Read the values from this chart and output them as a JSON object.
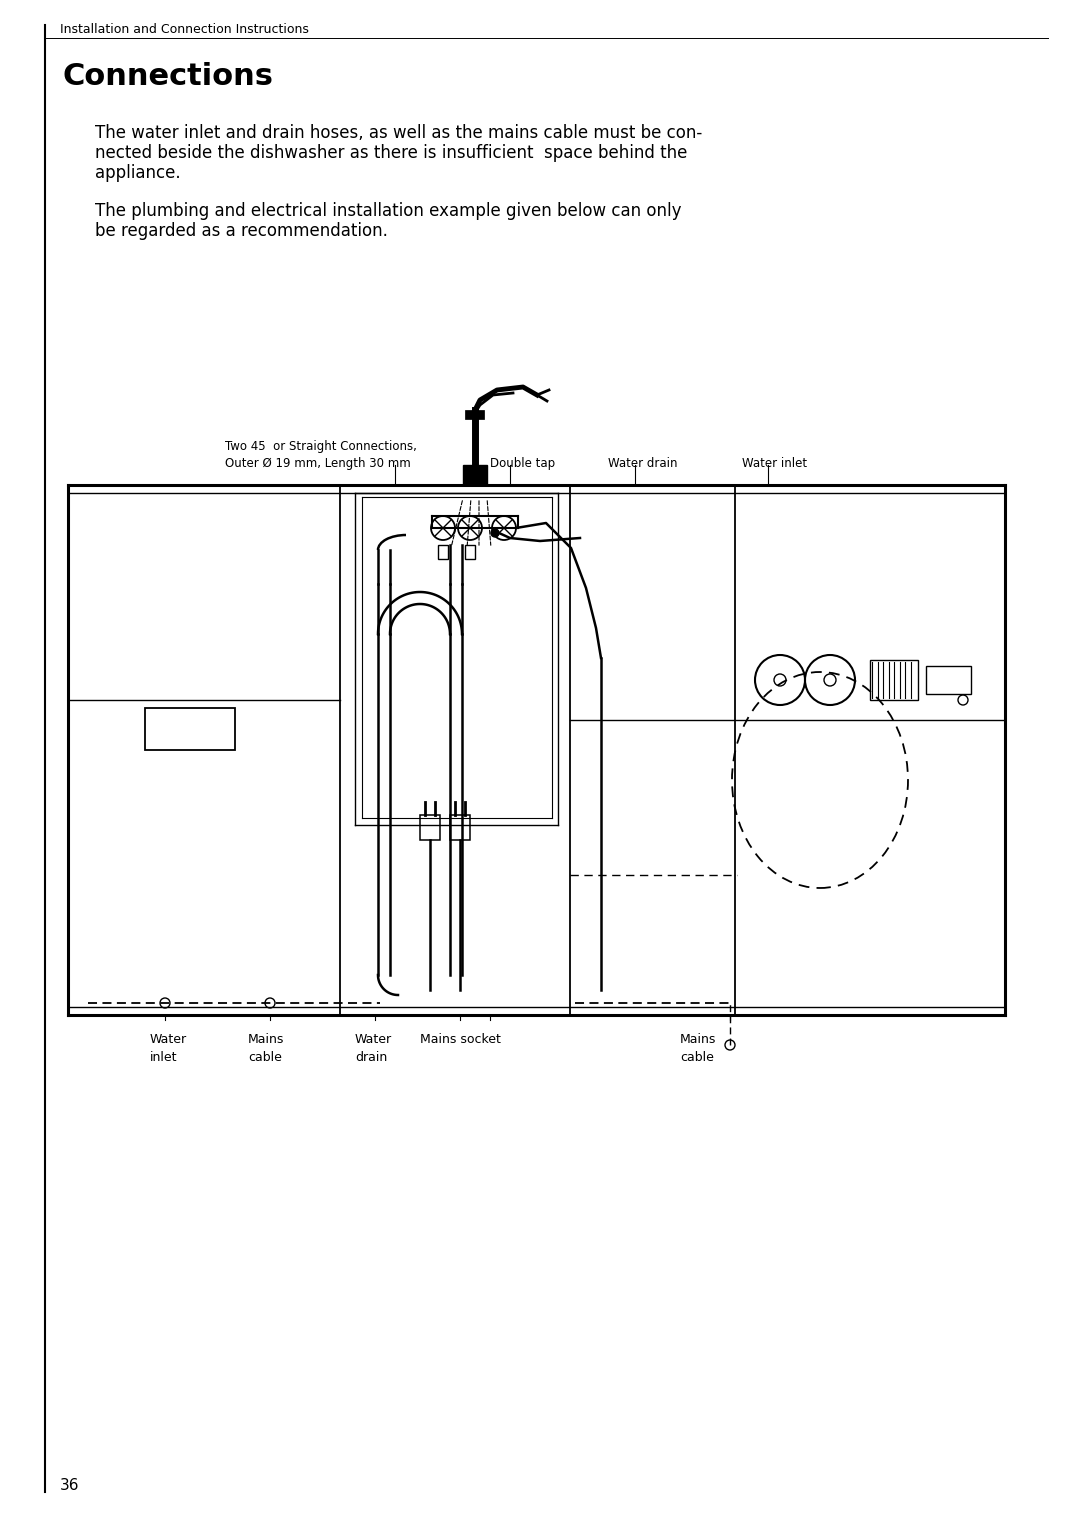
{
  "page_number": "36",
  "header_text": "Installation and Connection Instructions",
  "title": "Connections",
  "para1_l1": "The water inlet and drain hoses, as well as the mains cable must be con-",
  "para1_l2": "nected beside the dishwasher as there is insufficient  space behind the",
  "para1_l3": "appliance.",
  "para2_l1": "The plumbing and electrical installation example given below can only",
  "para2_l2": "be regarded as a recommendation.",
  "diag_label1": "Two 45  or Straight Connections,",
  "diag_label2": "Outer Ø 19 mm, Length 30 mm",
  "lbl_double_tap": "Double tap",
  "lbl_water_drain_top": "Water drain",
  "lbl_water_inlet_top": "Water inlet",
  "lbl_water_inlet": "Water",
  "lbl_water_inlet2": "inlet",
  "lbl_mains_cable_l1": "Mains",
  "lbl_mains_cable_l2": "cable",
  "lbl_water_drain": "Water",
  "lbl_water_drain2": "drain",
  "lbl_mains_socket": "Mains socket",
  "lbl_mains_cable_r1": "Mains",
  "lbl_mains_cable_r2": "cable",
  "bg": "#ffffff",
  "lc": "#000000"
}
